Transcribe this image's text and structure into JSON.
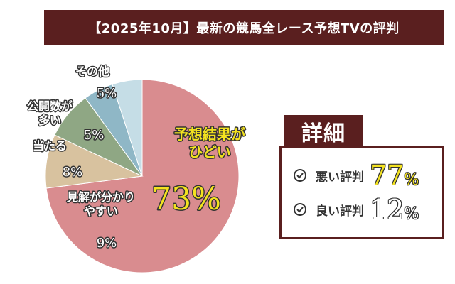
{
  "title": "【2025年10月】最新の競馬全レース予想TVの評判",
  "details": {
    "heading": "詳細",
    "rows": [
      {
        "label": "悪い評判",
        "value": "77",
        "unit": "%"
      },
      {
        "label": "良い評判",
        "value": "12",
        "unit": "%"
      }
    ]
  },
  "chart_data": {
    "type": "pie",
    "slices": [
      {
        "label": "予想結果が\nひどい",
        "value": 73,
        "display": "73%",
        "color": "#d98c8f"
      },
      {
        "label": "見解が分かり\nやすい",
        "value": 9,
        "display": "9%",
        "color": "#d8c29f"
      },
      {
        "label": "当たる",
        "value": 8,
        "display": "8%",
        "color": "#8fa784"
      },
      {
        "label": "公開数が\n多い",
        "value": 5,
        "display": "5%",
        "color": "#8fb7c6"
      },
      {
        "label": "その他",
        "value": 5,
        "display": "5%",
        "color": "#c5dde6"
      }
    ],
    "start": "top",
    "direction": "clockwise"
  }
}
